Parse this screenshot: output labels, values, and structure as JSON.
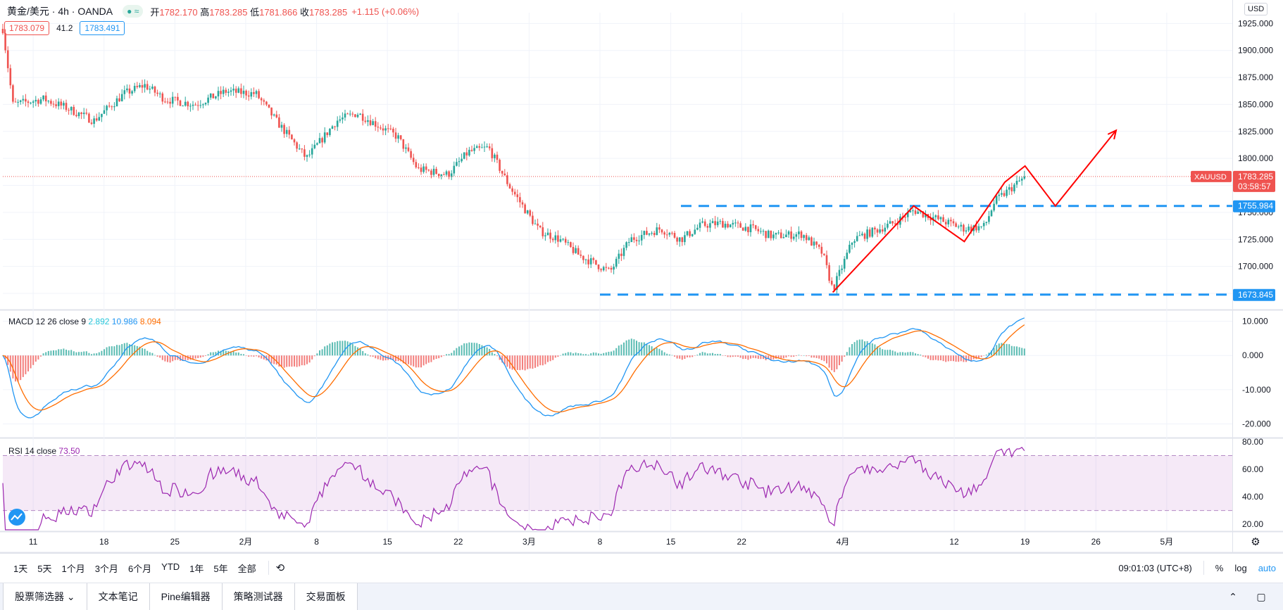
{
  "header": {
    "symbol": "黄金/美元 · 4h · OANDA",
    "status_icon": "≈",
    "open_label": "开",
    "open": "1782.170",
    "high_label": "高",
    "high": "1783.285",
    "low_label": "低",
    "low": "1781.866",
    "close_label": "收",
    "close": "1783.285",
    "change": "+1.115 (+0.06%)",
    "bid": "1783.079",
    "spread": "41.2",
    "ask": "1783.491",
    "currency": "USD"
  },
  "colors": {
    "up": "#26a69a",
    "down": "#ef5350",
    "macd": "#2196f3",
    "signal": "#ff6d00",
    "rsi": "#9c27b0",
    "level_line": "#2196f3",
    "projection": "#ff0000"
  },
  "price_axis": {
    "ticks": [
      "1925.000",
      "1900.000",
      "1875.000",
      "1850.000",
      "1825.000",
      "1800.000",
      "1775.000",
      "1750.000",
      "1725.000",
      "1700.000",
      "1675.000"
    ],
    "current_symbol": "XAUUSD",
    "current_price": "1783.285",
    "countdown": "03:58:57",
    "level_high": "1755.984",
    "level_low": "1673.845"
  },
  "macd": {
    "label": "MACD 12 26 close 9",
    "hist": "2.892",
    "macd": "10.986",
    "signal": "8.094",
    "ticks": [
      "10.000",
      "0.000",
      "-10.000",
      "-20.000"
    ]
  },
  "rsi": {
    "label": "RSI 14 close",
    "value": "73.50",
    "ticks": [
      "80.00",
      "60.00",
      "40.00",
      "20.00"
    ]
  },
  "time_axis": {
    "labels": [
      "11",
      "18",
      "25",
      "2月",
      "8",
      "15",
      "22",
      "3月",
      "8",
      "15",
      "22",
      "4月",
      "12",
      "19",
      "26",
      "5月"
    ]
  },
  "toolbar": {
    "ranges": [
      "1天",
      "5天",
      "1个月",
      "3个月",
      "6个月",
      "YTD",
      "1年",
      "5年",
      "全部"
    ],
    "time": "09:01:03 (UTC+8)",
    "percent": "%",
    "log": "log",
    "auto": "auto"
  },
  "bottom_tabs": [
    "股票筛选器",
    "文本笔记",
    "Pine编辑器",
    "策略测试器",
    "交易面板"
  ],
  "chart_data": {
    "type": "candlestick",
    "title": "黄金/美元 · 4h · OANDA",
    "xlabel": "",
    "ylabel": "",
    "ylim": [
      1660,
      1935
    ],
    "series": [
      {
        "name": "XAUUSD",
        "dates": [
          "01-08",
          "01-11",
          "01-18",
          "01-25",
          "02-01",
          "02-08",
          "02-15",
          "02-22",
          "03-01",
          "03-08",
          "03-15",
          "03-22",
          "03-29",
          "04-01",
          "04-12",
          "04-19"
        ],
        "close": [
          1920,
          1845,
          1840,
          1860,
          1862,
          1835,
          1820,
          1800,
          1750,
          1700,
          1728,
          1735,
          1725,
          1712,
          1745,
          1783.285
        ]
      }
    ],
    "levels": [
      1755.984,
      1673.845
    ],
    "projection_path": [
      {
        "date": "03-31",
        "price": 1676
      },
      {
        "date": "04-08",
        "price": 1756
      },
      {
        "date": "04-13",
        "price": 1723
      },
      {
        "date": "04-17",
        "price": 1778
      },
      {
        "date": "04-19",
        "price": 1793
      },
      {
        "date": "04-22",
        "price": 1756
      },
      {
        "date": "04-28",
        "price": 1826
      }
    ],
    "macd_ylim": [
      -24,
      13
    ],
    "rsi_ylim": [
      15,
      82
    ],
    "rsi_bands": [
      70,
      30
    ]
  }
}
